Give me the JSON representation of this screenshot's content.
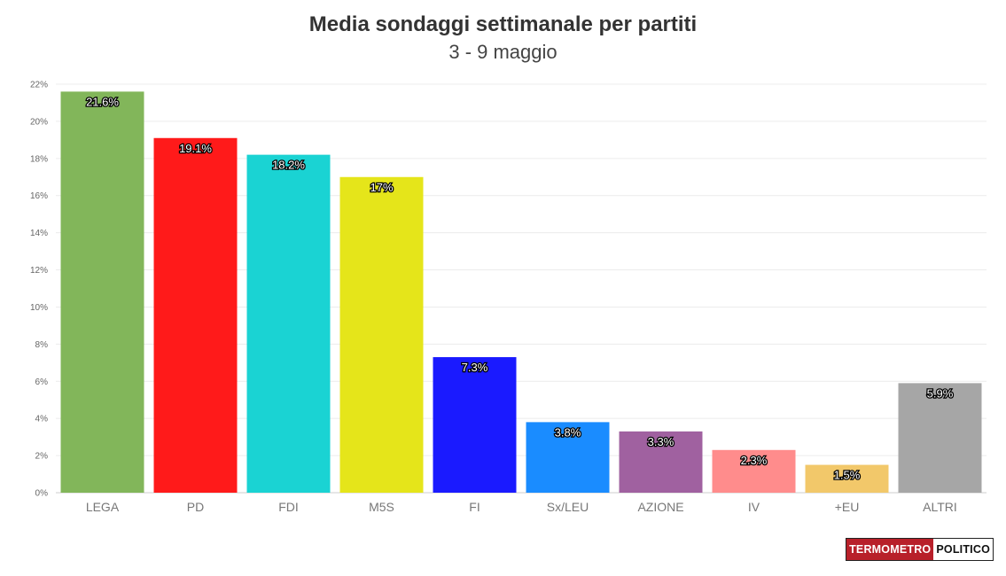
{
  "chart_data": {
    "type": "bar",
    "title": "Media sondaggi settimanale per partiti",
    "subtitle": "3 - 9 maggio",
    "categories": [
      "LEGA",
      "PD",
      "FDI",
      "M5S",
      "FI",
      "Sx/LEU",
      "AZIONE",
      "IV",
      "+EU",
      "ALTRI"
    ],
    "values": [
      21.6,
      19.1,
      18.2,
      17,
      7.3,
      3.8,
      3.3,
      2.3,
      1.5,
      5.9
    ],
    "data_labels": [
      "21.6%",
      "19.1%",
      "18.2%",
      "17%",
      "7.3%",
      "3.8%",
      "3.3%",
      "2.3%",
      "1.5%",
      "5.9%"
    ],
    "colors": [
      "#82b65a",
      "#ff1a1a",
      "#1ad3d3",
      "#e5e51a",
      "#1a1aff",
      "#1a8cff",
      "#a061a0",
      "#ff8c8c",
      "#f2c86a",
      "#a6a6a6"
    ],
    "ylim": [
      0,
      22
    ],
    "yticks": [
      0,
      2,
      4,
      6,
      8,
      10,
      12,
      14,
      16,
      18,
      20,
      22
    ],
    "ytick_suffix": "%",
    "grid": true,
    "xlabel": "",
    "ylabel": ""
  },
  "logo": {
    "left_text": "TERMOMETRO",
    "right_text": "POLITICO"
  }
}
